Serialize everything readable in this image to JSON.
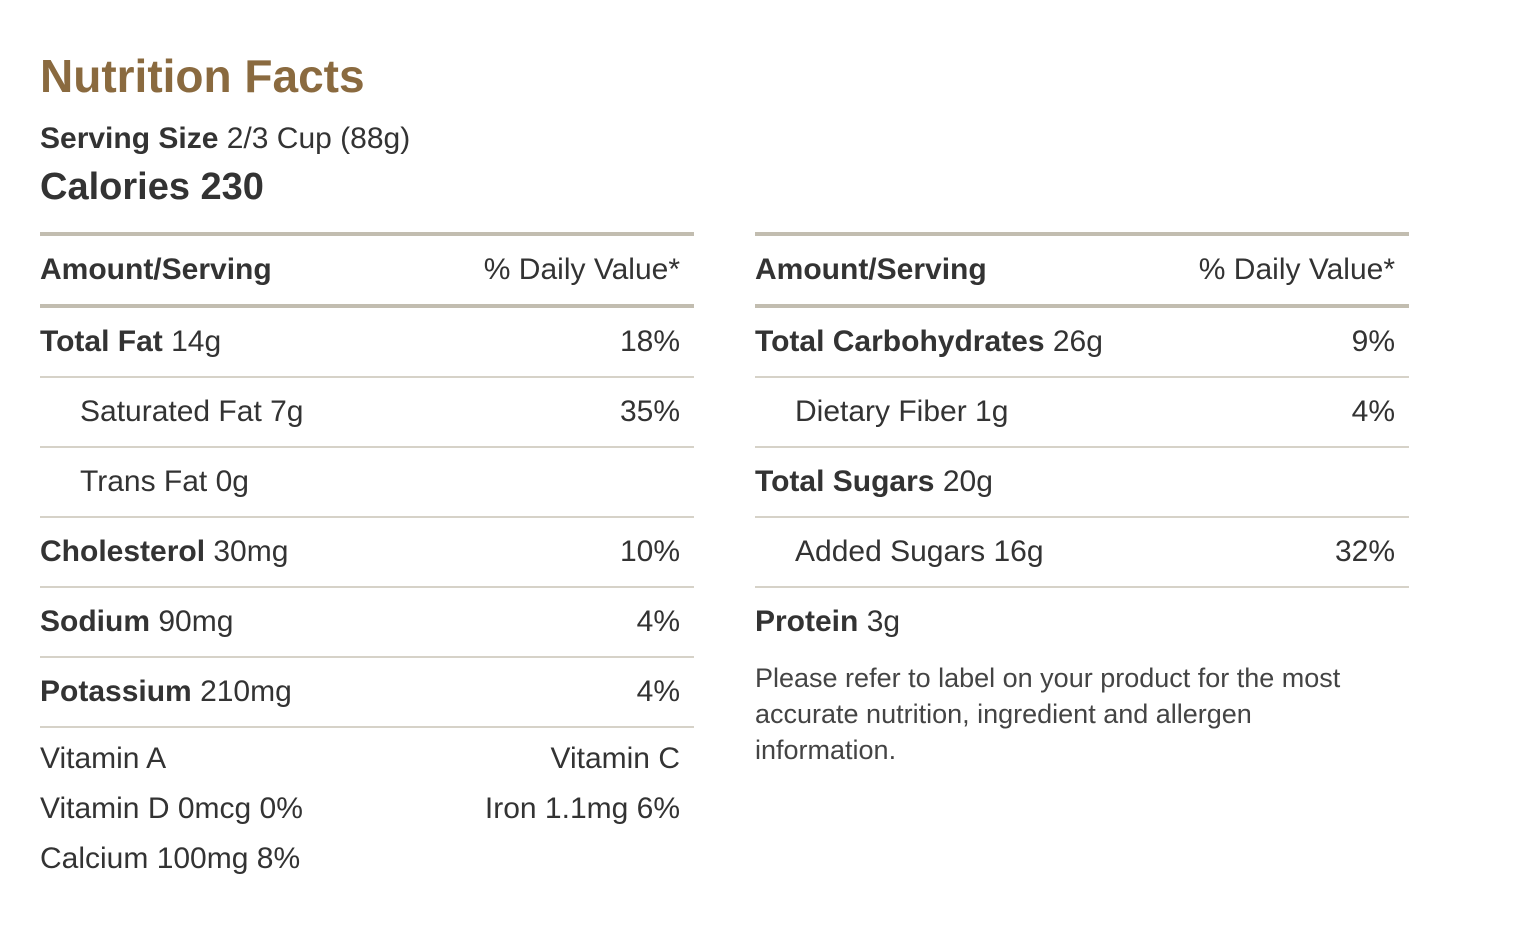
{
  "title": "Nutrition Facts",
  "serving": {
    "label": "Serving Size",
    "value": "2/3 Cup (88g)"
  },
  "calories": {
    "label": "Calories",
    "value": "230"
  },
  "left": {
    "header": {
      "amount": "Amount/Serving",
      "dv": "% Daily Value*"
    },
    "rows": [
      {
        "name": "Total Fat",
        "amount": "14g",
        "dv": "18%"
      },
      {
        "name": "",
        "amount": "Saturated Fat 7g",
        "dv": "35%"
      },
      {
        "name": "",
        "amount": "Trans Fat 0g",
        "dv": ""
      },
      {
        "name": "Cholesterol",
        "amount": "30mg",
        "dv": "10%"
      },
      {
        "name": "Sodium",
        "amount": "90mg",
        "dv": "4%"
      },
      {
        "name": "Potassium",
        "amount": "210mg",
        "dv": "4%"
      }
    ],
    "vitamins": {
      "a": "Vitamin A",
      "c": "Vitamin C",
      "d": "Vitamin D 0mcg 0%",
      "iron": "Iron 1.1mg 6%",
      "calcium": "Calcium 100mg 8%"
    }
  },
  "right": {
    "header": {
      "amount": "Amount/Serving",
      "dv": "% Daily Value*"
    },
    "rows": [
      {
        "name": "Total Carbohydrates",
        "amount": "26g",
        "dv": "9%"
      },
      {
        "name": "",
        "amount": "Dietary Fiber 1g",
        "dv": "4%"
      },
      {
        "name": "Total Sugars",
        "amount": "20g",
        "dv": ""
      },
      {
        "name": "",
        "amount": "Added Sugars 16g",
        "dv": "32%"
      },
      {
        "name": "Protein",
        "amount": "3g",
        "dv": ""
      }
    ],
    "note": "Please refer to label on your product for the most accurate nutrition, ingredient and allergen information."
  },
  "colors": {
    "title": "#8a6a3f",
    "text": "#333333",
    "rule": "#c2bdb0"
  }
}
